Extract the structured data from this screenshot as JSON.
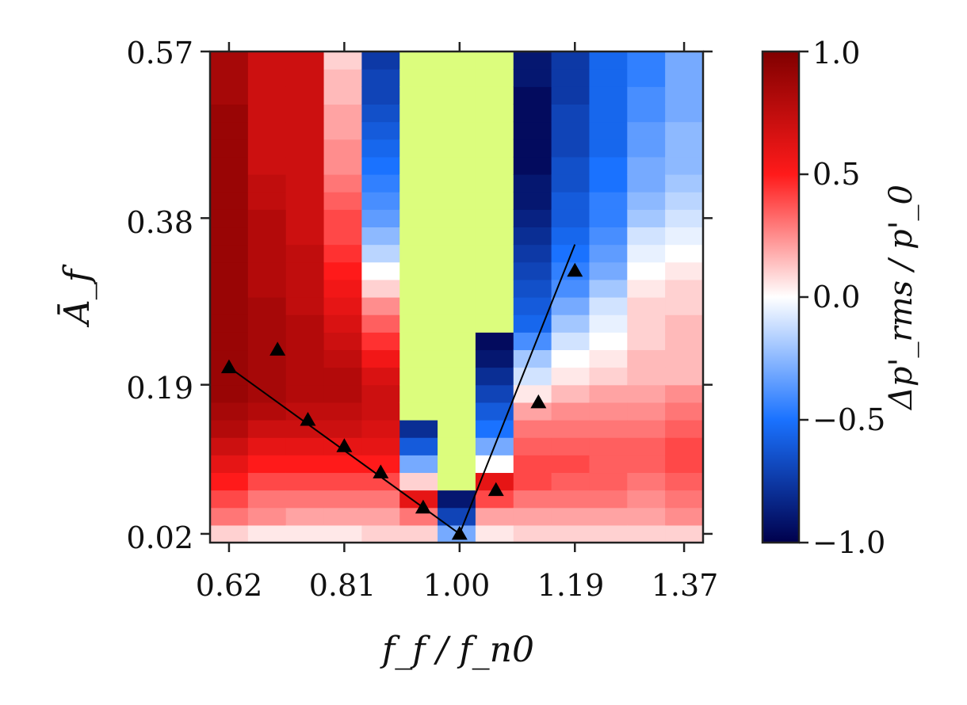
{
  "chart_data": {
    "type": "heatmap",
    "xlabel": "f_f / f_n0",
    "ylabel": "Ā_f",
    "colorbar_label": "Δp'_rms / p'_0",
    "x_ticks": [
      "0.62",
      "0.81",
      "1.00",
      "1.19",
      "1.37"
    ],
    "y_ticks": [
      "0.57",
      "0.38",
      "0.19",
      "0.02"
    ],
    "colorbar_ticks": [
      "1.0",
      "0.5",
      "0.0",
      "−0.5",
      "−1.0"
    ],
    "colormap": "seismic (blue −1 → white 0 → red +1)",
    "nan_color": "#dcfd7d",
    "xlim": [
      0.59,
      1.4
    ],
    "ylim": [
      0.0,
      0.57
    ],
    "clim": [
      -1.0,
      1.0
    ],
    "grid": false,
    "x": [
      0.62,
      0.68,
      0.75,
      0.81,
      0.87,
      0.94,
      1.0,
      1.06,
      1.12,
      1.19,
      1.25,
      1.31,
      1.37
    ],
    "y": [
      0.02,
      0.04,
      0.06,
      0.08,
      0.1,
      0.12,
      0.14,
      0.16,
      0.18,
      0.2,
      0.22,
      0.24,
      0.26,
      0.28,
      0.3,
      0.32,
      0.34,
      0.36,
      0.38,
      0.4,
      0.42,
      0.44,
      0.46,
      0.48,
      0.5,
      0.52,
      0.54,
      0.56
    ],
    "z_columns": [
      [
        0.1,
        0.3,
        0.4,
        0.5,
        0.6,
        0.7,
        0.8,
        0.85,
        0.9,
        0.9,
        0.9,
        0.9,
        0.9,
        0.9,
        0.9,
        0.9,
        0.9,
        0.9,
        0.9,
        0.9,
        0.9,
        0.9,
        0.9,
        0.9,
        0.9,
        0.85,
        0.85,
        0.85
      ],
      [
        0.05,
        0.25,
        0.3,
        0.4,
        0.5,
        0.6,
        0.7,
        0.8,
        0.85,
        0.85,
        0.85,
        0.85,
        0.85,
        0.85,
        0.8,
        0.8,
        0.8,
        0.8,
        0.8,
        0.75,
        0.75,
        0.7,
        0.7,
        0.7,
        0.7,
        0.7,
        0.7,
        0.7
      ],
      [
        0.05,
        0.2,
        0.3,
        0.4,
        0.5,
        0.6,
        0.7,
        0.75,
        0.8,
        0.8,
        0.8,
        0.8,
        0.8,
        0.75,
        0.75,
        0.75,
        0.75,
        0.7,
        0.7,
        0.7,
        0.7,
        0.7,
        0.7,
        0.7,
        0.7,
        0.7,
        0.7,
        0.7
      ],
      [
        0.05,
        0.2,
        0.3,
        0.4,
        0.5,
        0.6,
        0.7,
        0.75,
        0.8,
        0.8,
        0.75,
        0.7,
        0.65,
        0.6,
        0.55,
        0.5,
        0.45,
        0.4,
        0.4,
        0.35,
        0.3,
        0.25,
        0.25,
        0.2,
        0.2,
        0.15,
        0.15,
        0.1
      ],
      [
        0.1,
        0.2,
        0.3,
        0.4,
        0.5,
        0.6,
        0.65,
        0.7,
        0.7,
        0.65,
        0.55,
        0.45,
        0.35,
        0.25,
        0.1,
        0.0,
        -0.15,
        -0.25,
        -0.35,
        -0.4,
        -0.45,
        -0.5,
        -0.55,
        -0.6,
        -0.65,
        -0.7,
        -0.7,
        -0.75
      ],
      [
        0.1,
        0.3,
        0.6,
        0.1,
        -0.3,
        -0.6,
        -0.8,
        null,
        null,
        null,
        null,
        null,
        null,
        null,
        null,
        null,
        null,
        null,
        null,
        null,
        null,
        null,
        null,
        null,
        null,
        null,
        null,
        null
      ],
      [
        -0.3,
        -0.7,
        -0.9,
        null,
        null,
        null,
        null,
        null,
        null,
        null,
        null,
        null,
        null,
        null,
        null,
        null,
        null,
        null,
        null,
        null,
        null,
        null,
        null,
        null,
        null,
        null,
        null,
        null
      ],
      [
        0.05,
        0.2,
        0.4,
        0.6,
        0.0,
        -0.3,
        -0.5,
        -0.6,
        -0.7,
        -0.8,
        -0.9,
        -0.95,
        null,
        null,
        null,
        null,
        null,
        null,
        null,
        null,
        null,
        null,
        null,
        null,
        null,
        null,
        null,
        null
      ],
      [
        0.1,
        0.2,
        0.3,
        0.4,
        0.4,
        0.35,
        0.3,
        0.2,
        0.05,
        -0.1,
        -0.2,
        -0.4,
        -0.55,
        -0.6,
        -0.65,
        -0.7,
        -0.75,
        -0.8,
        -0.85,
        -0.9,
        -0.9,
        -0.95,
        -0.95,
        -0.95,
        -0.95,
        -0.95,
        -0.9,
        -0.9
      ],
      [
        0.1,
        0.2,
        0.3,
        0.35,
        0.4,
        0.35,
        0.3,
        0.25,
        0.15,
        0.05,
        0.0,
        -0.1,
        -0.2,
        -0.3,
        -0.4,
        -0.45,
        -0.5,
        -0.55,
        -0.6,
        -0.6,
        -0.65,
        -0.65,
        -0.7,
        -0.7,
        -0.7,
        -0.75,
        -0.75,
        -0.75
      ],
      [
        0.1,
        0.2,
        0.3,
        0.35,
        0.35,
        0.35,
        0.3,
        0.25,
        0.2,
        0.1,
        0.05,
        0.0,
        -0.05,
        -0.1,
        -0.2,
        -0.3,
        -0.35,
        -0.4,
        -0.45,
        -0.45,
        -0.5,
        -0.5,
        -0.55,
        -0.55,
        -0.55,
        -0.55,
        -0.55,
        -0.55
      ],
      [
        0.1,
        0.2,
        0.25,
        0.3,
        0.35,
        0.35,
        0.3,
        0.25,
        0.2,
        0.15,
        0.15,
        0.1,
        0.1,
        0.1,
        0.05,
        0.0,
        -0.05,
        -0.1,
        -0.2,
        -0.25,
        -0.3,
        -0.3,
        -0.35,
        -0.35,
        -0.4,
        -0.4,
        -0.45,
        -0.45
      ],
      [
        0.1,
        0.25,
        0.3,
        0.35,
        0.4,
        0.4,
        0.35,
        0.3,
        0.25,
        0.15,
        0.15,
        0.15,
        0.15,
        0.1,
        0.1,
        0.05,
        0.0,
        -0.05,
        -0.1,
        -0.15,
        -0.2,
        -0.25,
        -0.25,
        -0.25,
        -0.3,
        -0.3,
        -0.3,
        -0.3
      ]
    ],
    "markers": {
      "shape": "triangle-up",
      "points": [
        [
          0.62,
          0.21
        ],
        [
          0.7,
          0.23
        ],
        [
          0.75,
          0.15
        ],
        [
          0.81,
          0.12
        ],
        [
          0.87,
          0.09
        ],
        [
          0.94,
          0.05
        ],
        [
          1.0,
          0.02
        ],
        [
          1.06,
          0.07
        ],
        [
          1.13,
          0.17
        ],
        [
          1.19,
          0.32
        ]
      ]
    },
    "fit_lines": [
      {
        "x": [
          0.62,
          1.0
        ],
        "y": [
          0.21,
          0.02
        ]
      },
      {
        "x": [
          1.0,
          1.19
        ],
        "y": [
          0.02,
          0.35
        ]
      }
    ]
  }
}
